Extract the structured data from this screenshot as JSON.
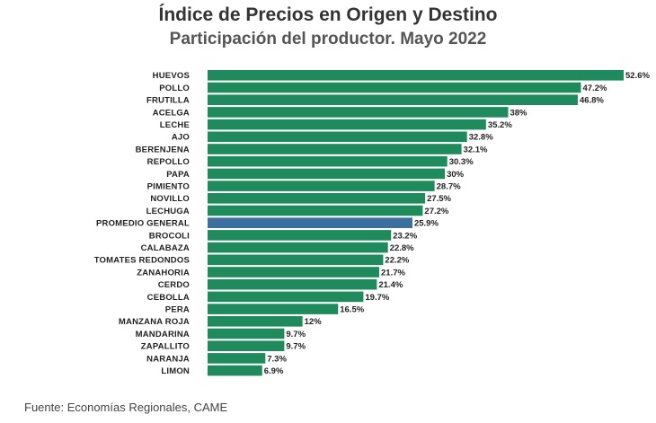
{
  "chart_data": {
    "type": "bar",
    "orientation": "horizontal",
    "title": "Índice de Precios en Origen y Destino",
    "subtitle": "Participación del productor. Mayo 2022",
    "categories": [
      "HUEVOS",
      "POLLO",
      "FRUTILLA",
      "ACELGA",
      "LECHE",
      "AJO",
      "BERENJENA",
      "REPOLLO",
      "PAPA",
      "PIMIENTO",
      "NOVILLO",
      "LECHUGA",
      "PROMEDIO GENERAL",
      "BROCOLI",
      "CALABAZA",
      "TOMATES REDONDOS",
      "ZANAHORIA",
      "CERDO",
      "CEBOLLA",
      "PERA",
      "MANZANA ROJA",
      "MANDARINA",
      "ZAPALLITO",
      "NARANJA",
      "LIMON"
    ],
    "values": [
      52.6,
      47.2,
      46.8,
      38,
      35.2,
      32.8,
      32.1,
      30.3,
      30,
      28.7,
      27.5,
      27.2,
      25.9,
      23.2,
      22.8,
      22.2,
      21.7,
      21.4,
      19.7,
      16.5,
      12,
      9.7,
      9.7,
      7.3,
      6.9
    ],
    "value_labels": [
      "52.6%",
      "47.2%",
      "46.8%",
      "38%",
      "35.2%",
      "32.8%",
      "32.1%",
      "30.3%",
      "30%",
      "28.7%",
      "27.5%",
      "27.2%",
      "25.9%",
      "23.2%",
      "22.8%",
      "22.2%",
      "21.7%",
      "21.4%",
      "19.7%",
      "16.5%",
      "12%",
      "9.7%",
      "9.7%",
      "7.3%",
      "6.9%"
    ],
    "highlight_category": "PROMEDIO GENERAL",
    "xlim": [
      0,
      52.6
    ],
    "grid": false,
    "legend": "none",
    "colors": {
      "bar": "#1f8a5b",
      "highlight": "#3a6f9e"
    }
  },
  "source_note": "Fuente: Economías Regionales, CAME"
}
